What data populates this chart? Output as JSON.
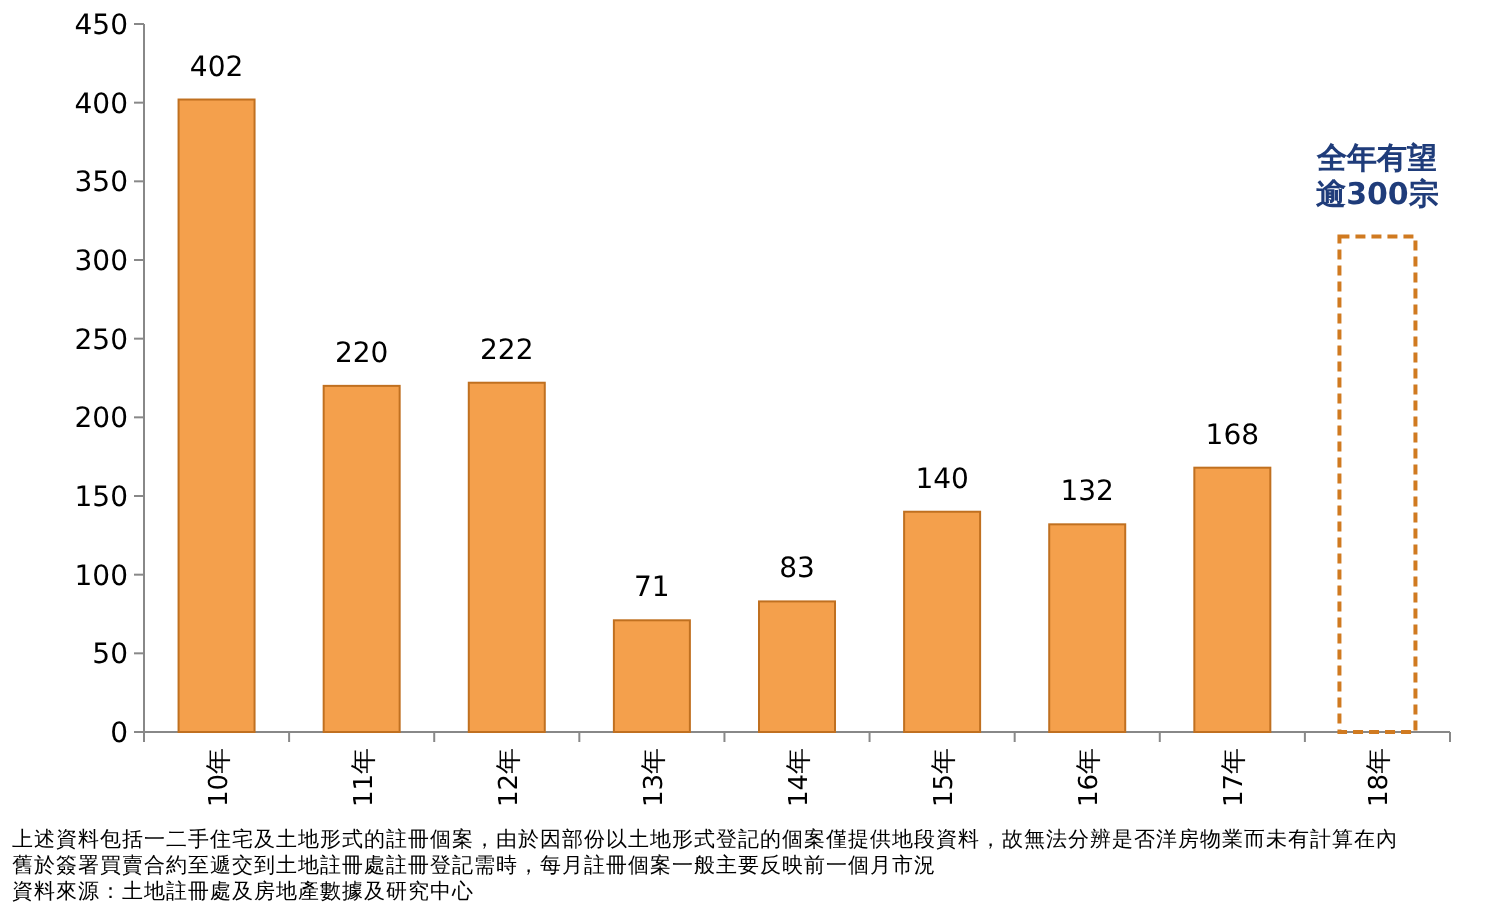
{
  "chart_data": {
    "type": "bar",
    "categories": [
      "10年",
      "11年",
      "12年",
      "13年",
      "14年",
      "15年",
      "16年",
      "17年",
      "18年"
    ],
    "series": [
      {
        "color": "#f4a04c",
        "values": [
          402,
          220,
          222,
          71,
          83,
          140,
          132,
          168,
          null
        ],
        "value_labels": [
          "402",
          "220",
          "222",
          "71",
          "83",
          "140",
          "132",
          "168",
          null
        ]
      },
      {
        "color": "#d07a20",
        "line_style": "dashed",
        "values": [
          null,
          null,
          null,
          null,
          null,
          null,
          null,
          null,
          315
        ]
      }
    ],
    "ylim": [
      0,
      450
    ],
    "yticks": [
      0,
      50,
      100,
      150,
      200,
      250,
      300,
      350,
      400,
      450
    ],
    "annotations": [
      {
        "text": "全年有望逾300宗",
        "x": "18年",
        "y": 315
      },
      "上述資料包括一二手住宅及土地形式的註冊個案，由於因部份以土地形式登記的個案僅提供地段資料，故無法分辨是否洋房物業而未有計算在內",
      "舊於簽署買賣合約至遞交到土地註冊處註冊登記需時，每月註冊個案一般主要反映前一個月市況",
      "資料來源：土地註冊處及房地產數據及研究中心"
    ]
  }
}
